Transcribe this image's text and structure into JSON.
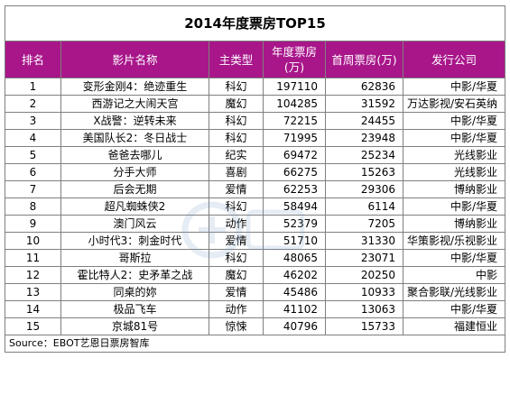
{
  "title": "2014年度票房TOP15",
  "headers": [
    "排名",
    "影片名称",
    "主类型",
    "年度票房\n(万)",
    "首周票房(万)",
    "发行公司"
  ],
  "rows": [
    {
      "rank": "1",
      "name": "变形金刚4：绝迹重生",
      "genre": "科幻",
      "annual": "197110",
      "first_week": "62836",
      "company": "中影/华夏"
    },
    {
      "rank": "2",
      "name": "西游记之大闹天宫",
      "genre": "魔幻",
      "annual": "104285",
      "first_week": "31592",
      "company": "万达影视/安石英纳"
    },
    {
      "rank": "3",
      "name": "X战警：逆转未来",
      "genre": "科幻",
      "annual": "72215",
      "first_week": "24455",
      "company": "中影/华夏"
    },
    {
      "rank": "4",
      "name": "美国队长2：冬日战士",
      "genre": "科幻",
      "annual": "71995",
      "first_week": "23948",
      "company": "中影/华夏"
    },
    {
      "rank": "5",
      "name": "爸爸去哪儿",
      "genre": "纪实",
      "annual": "69472",
      "first_week": "25234",
      "company": "光线影业"
    },
    {
      "rank": "6",
      "name": "分手大师",
      "genre": "喜剧",
      "annual": "66275",
      "first_week": "15263",
      "company": "光线影业"
    },
    {
      "rank": "7",
      "name": "后会无期",
      "genre": "爱情",
      "annual": "62253",
      "first_week": "29306",
      "company": "博纳影业"
    },
    {
      "rank": "8",
      "name": "超凡蜘蛛侠2",
      "genre": "科幻",
      "annual": "58494",
      "first_week": "6114",
      "company": "中影/华夏"
    },
    {
      "rank": "9",
      "name": "澳门风云",
      "genre": "动作",
      "annual": "52379",
      "first_week": "7205",
      "company": "博纳影业"
    },
    {
      "rank": "10",
      "name": "小时代3：刺金时代",
      "genre": "爱情",
      "annual": "51710",
      "first_week": "31330",
      "company": "华策影视/乐视影业"
    },
    {
      "rank": "11",
      "name": "哥斯拉",
      "genre": "科幻",
      "annual": "48065",
      "first_week": "23071",
      "company": "中影/华夏"
    },
    {
      "rank": "12",
      "name": "霍比特人2：史矛革之战",
      "genre": "魔幻",
      "annual": "46202",
      "first_week": "20250",
      "company": "中影"
    },
    {
      "rank": "13",
      "name": "同桌的妳",
      "genre": "爱情",
      "annual": "45486",
      "first_week": "10933",
      "company": "聚合影联/光线影业"
    },
    {
      "rank": "14",
      "name": "极品飞车",
      "genre": "动作",
      "annual": "41102",
      "first_week": "13063",
      "company": "中影/华夏"
    },
    {
      "rank": "15",
      "name": "京城81号",
      "genre": "惊悚",
      "annual": "40796",
      "first_week": "15733",
      "company": "福建恒业"
    }
  ],
  "source": "Source：EBOT艺恩日票房智库",
  "colors": {
    "header_bg": "#a8168a",
    "header_text": "#ffffff",
    "border": "#7f7f7f"
  }
}
